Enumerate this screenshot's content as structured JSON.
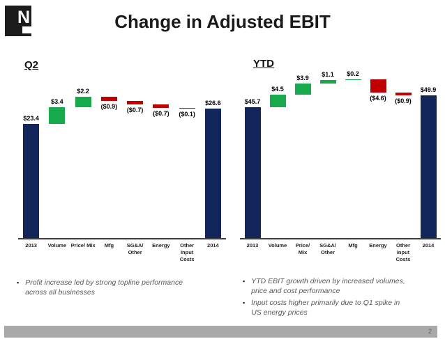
{
  "slide": {
    "title": "Change in Adjusted EBIT",
    "page_number": "2",
    "logo_letter": "N",
    "bullet_marker": "▪"
  },
  "colors": {
    "total": "#13265c",
    "up": "#19a94d",
    "down": "#c00000",
    "footer_bar": "#a9a9a9"
  },
  "chart_data": [
    {
      "id": "q2",
      "type": "bar",
      "subtype": "waterfall",
      "title": "Q2",
      "legend": "none",
      "gridlines": false,
      "value_axis_visible": false,
      "categories": [
        "2013",
        "Volume",
        "Price/ Mix",
        "Mfg",
        "SG&A/ Other",
        "Energy",
        "Other Input Costs",
        "2014"
      ],
      "values": [
        23.4,
        3.4,
        2.2,
        -0.9,
        -0.7,
        -0.7,
        -0.1,
        26.6
      ],
      "bars": [
        {
          "label_lines": [
            "2013"
          ],
          "value": 23.4,
          "display": "$23.4",
          "kind": "total"
        },
        {
          "label_lines": [
            "Volume"
          ],
          "value": 3.4,
          "display": "$3.4",
          "kind": "up"
        },
        {
          "label_lines": [
            "Price/ Mix"
          ],
          "value": 2.2,
          "display": "$2.2",
          "kind": "up"
        },
        {
          "label_lines": [
            "Mfg"
          ],
          "value": -0.9,
          "display": "($0.9)",
          "kind": "down"
        },
        {
          "label_lines": [
            "SG&A/",
            "Other"
          ],
          "value": -0.7,
          "display": "($0.7)",
          "kind": "down"
        },
        {
          "label_lines": [
            "Energy"
          ],
          "value": -0.7,
          "display": "($0.7)",
          "kind": "down"
        },
        {
          "label_lines": [
            "Other",
            "Input",
            "Costs"
          ],
          "value": -0.1,
          "display": "($0.1)",
          "kind": "down"
        },
        {
          "label_lines": [
            "2014"
          ],
          "value": 26.6,
          "display": "$26.6",
          "kind": "total"
        }
      ]
    },
    {
      "id": "ytd",
      "type": "bar",
      "subtype": "waterfall",
      "title": "YTD",
      "legend": "none",
      "gridlines": false,
      "value_axis_visible": false,
      "categories": [
        "2013",
        "Volume",
        "Price/ Mix",
        "SG&A/ Other",
        "Mfg",
        "Energy",
        "Other Input Costs",
        "2014"
      ],
      "values": [
        45.7,
        4.5,
        3.9,
        1.1,
        0.2,
        -4.6,
        -0.9,
        49.9
      ],
      "bars": [
        {
          "label_lines": [
            "2013"
          ],
          "value": 45.7,
          "display": "$45.7",
          "kind": "total"
        },
        {
          "label_lines": [
            "Volume"
          ],
          "value": 4.5,
          "display": "$4.5",
          "kind": "up"
        },
        {
          "label_lines": [
            "Price/",
            "Mix"
          ],
          "value": 3.9,
          "display": "$3.9",
          "kind": "up"
        },
        {
          "label_lines": [
            "SG&A/",
            "Other"
          ],
          "value": 1.1,
          "display": "$1.1",
          "kind": "up"
        },
        {
          "label_lines": [
            "Mfg"
          ],
          "value": 0.2,
          "display": "$0.2",
          "kind": "up"
        },
        {
          "label_lines": [
            "Energy"
          ],
          "value": -4.6,
          "display": "($4.6)",
          "kind": "down"
        },
        {
          "label_lines": [
            "Other",
            "Input",
            "Costs"
          ],
          "value": -0.9,
          "display": "($0.9)",
          "kind": "down"
        },
        {
          "label_lines": [
            "2014"
          ],
          "value": 49.9,
          "display": "$49.9",
          "kind": "total"
        }
      ]
    }
  ],
  "bullets": {
    "left": [
      {
        "lines": [
          "Profit increase led by strong topline performance",
          "across all businesses"
        ]
      }
    ],
    "right": [
      {
        "lines": [
          "YTD EBIT growth driven by increased volumes,",
          "price and cost performance"
        ]
      },
      {
        "lines": [
          "Input costs higher primarily due to Q1 spike in",
          "US energy prices"
        ]
      }
    ]
  }
}
